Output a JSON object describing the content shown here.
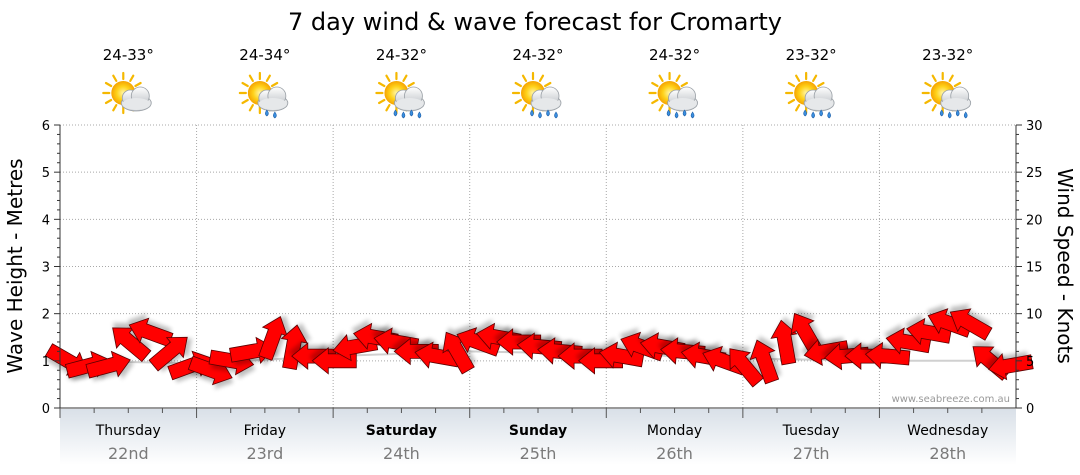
{
  "chart_data": {
    "type": "line",
    "title": "7 day wind & wave forecast for Cromarty",
    "ylabel_left": "Wave Height - Metres",
    "ylabel_right": "Wind Speed - Knots",
    "ylim_left": [
      0,
      6
    ],
    "ylim_right": [
      0,
      30
    ],
    "left_ticks": [
      "0",
      "1",
      "2",
      "3",
      "4",
      "5",
      "6"
    ],
    "right_ticks": [
      "0",
      "5",
      "10",
      "15",
      "20",
      "25",
      "30"
    ],
    "watermark": "www.seabreeze.com.au",
    "days": [
      {
        "name": "Thursday",
        "date": "22nd",
        "temp": "24-33°",
        "weather": "partly-cloudy",
        "bold": false
      },
      {
        "name": "Friday",
        "date": "23rd",
        "temp": "24-34°",
        "weather": "light-showers",
        "bold": false
      },
      {
        "name": "Saturday",
        "date": "24th",
        "temp": "24-32°",
        "weather": "showers",
        "bold": true
      },
      {
        "name": "Sunday",
        "date": "25th",
        "temp": "24-32°",
        "weather": "showers",
        "bold": true
      },
      {
        "name": "Monday",
        "date": "26th",
        "temp": "24-32°",
        "weather": "showers",
        "bold": false
      },
      {
        "name": "Tuesday",
        "date": "27th",
        "temp": "23-32°",
        "weather": "showers",
        "bold": false
      },
      {
        "name": "Wednesday",
        "date": "28th",
        "temp": "23-32°",
        "weather": "showers",
        "bold": false
      }
    ],
    "series": [
      {
        "name": "Wind Speed (knots) with direction",
        "x_days": [
          0.0,
          0.15,
          0.3,
          0.45,
          0.6,
          0.75,
          0.9,
          1.05,
          1.2,
          1.35,
          1.5,
          1.65,
          1.8,
          1.95,
          2.1,
          2.25,
          2.4,
          2.55,
          2.7,
          2.85,
          3.0,
          3.15,
          3.3,
          3.45,
          3.6,
          3.75,
          3.9,
          4.05,
          4.2,
          4.35,
          4.5,
          4.65,
          4.8,
          4.95,
          5.1,
          5.25,
          5.4,
          5.55,
          5.7,
          5.85,
          6.0,
          6.15,
          6.3,
          6.45,
          6.6,
          6.75,
          6.9
        ],
        "values": [
          5,
          4.5,
          4.5,
          7,
          8,
          6,
          4.5,
          4,
          5,
          6,
          7.5,
          6.5,
          5.5,
          5,
          6.5,
          7.5,
          7,
          6,
          5.5,
          6,
          7,
          7.5,
          7,
          6.5,
          6,
          5.5,
          5,
          5.5,
          6.5,
          6.5,
          6,
          5.5,
          5,
          4.5,
          5,
          7,
          8,
          6,
          5.5,
          5.5,
          5.5,
          7,
          8,
          9,
          9,
          5,
          4.5
        ],
        "direction_deg": [
          300,
          255,
          255,
          130,
          110,
          230,
          250,
          290,
          280,
          260,
          200,
          190,
          90,
          90,
          80,
          100,
          100,
          90,
          100,
          150,
          110,
          100,
          90,
          95,
          95,
          90,
          90,
          100,
          110,
          100,
          95,
          100,
          110,
          140,
          160,
          170,
          150,
          80,
          85,
          90,
          95,
          100,
          100,
          110,
          120,
          130,
          80
        ]
      },
      {
        "name": "Wave Height (m)",
        "x_days": [
          0,
          1,
          2,
          3,
          4,
          5,
          6,
          7
        ],
        "values": [
          1.0,
          0.95,
          1.1,
          1.2,
          1.15,
          1.05,
          1.0,
          1.0
        ]
      }
    ]
  }
}
